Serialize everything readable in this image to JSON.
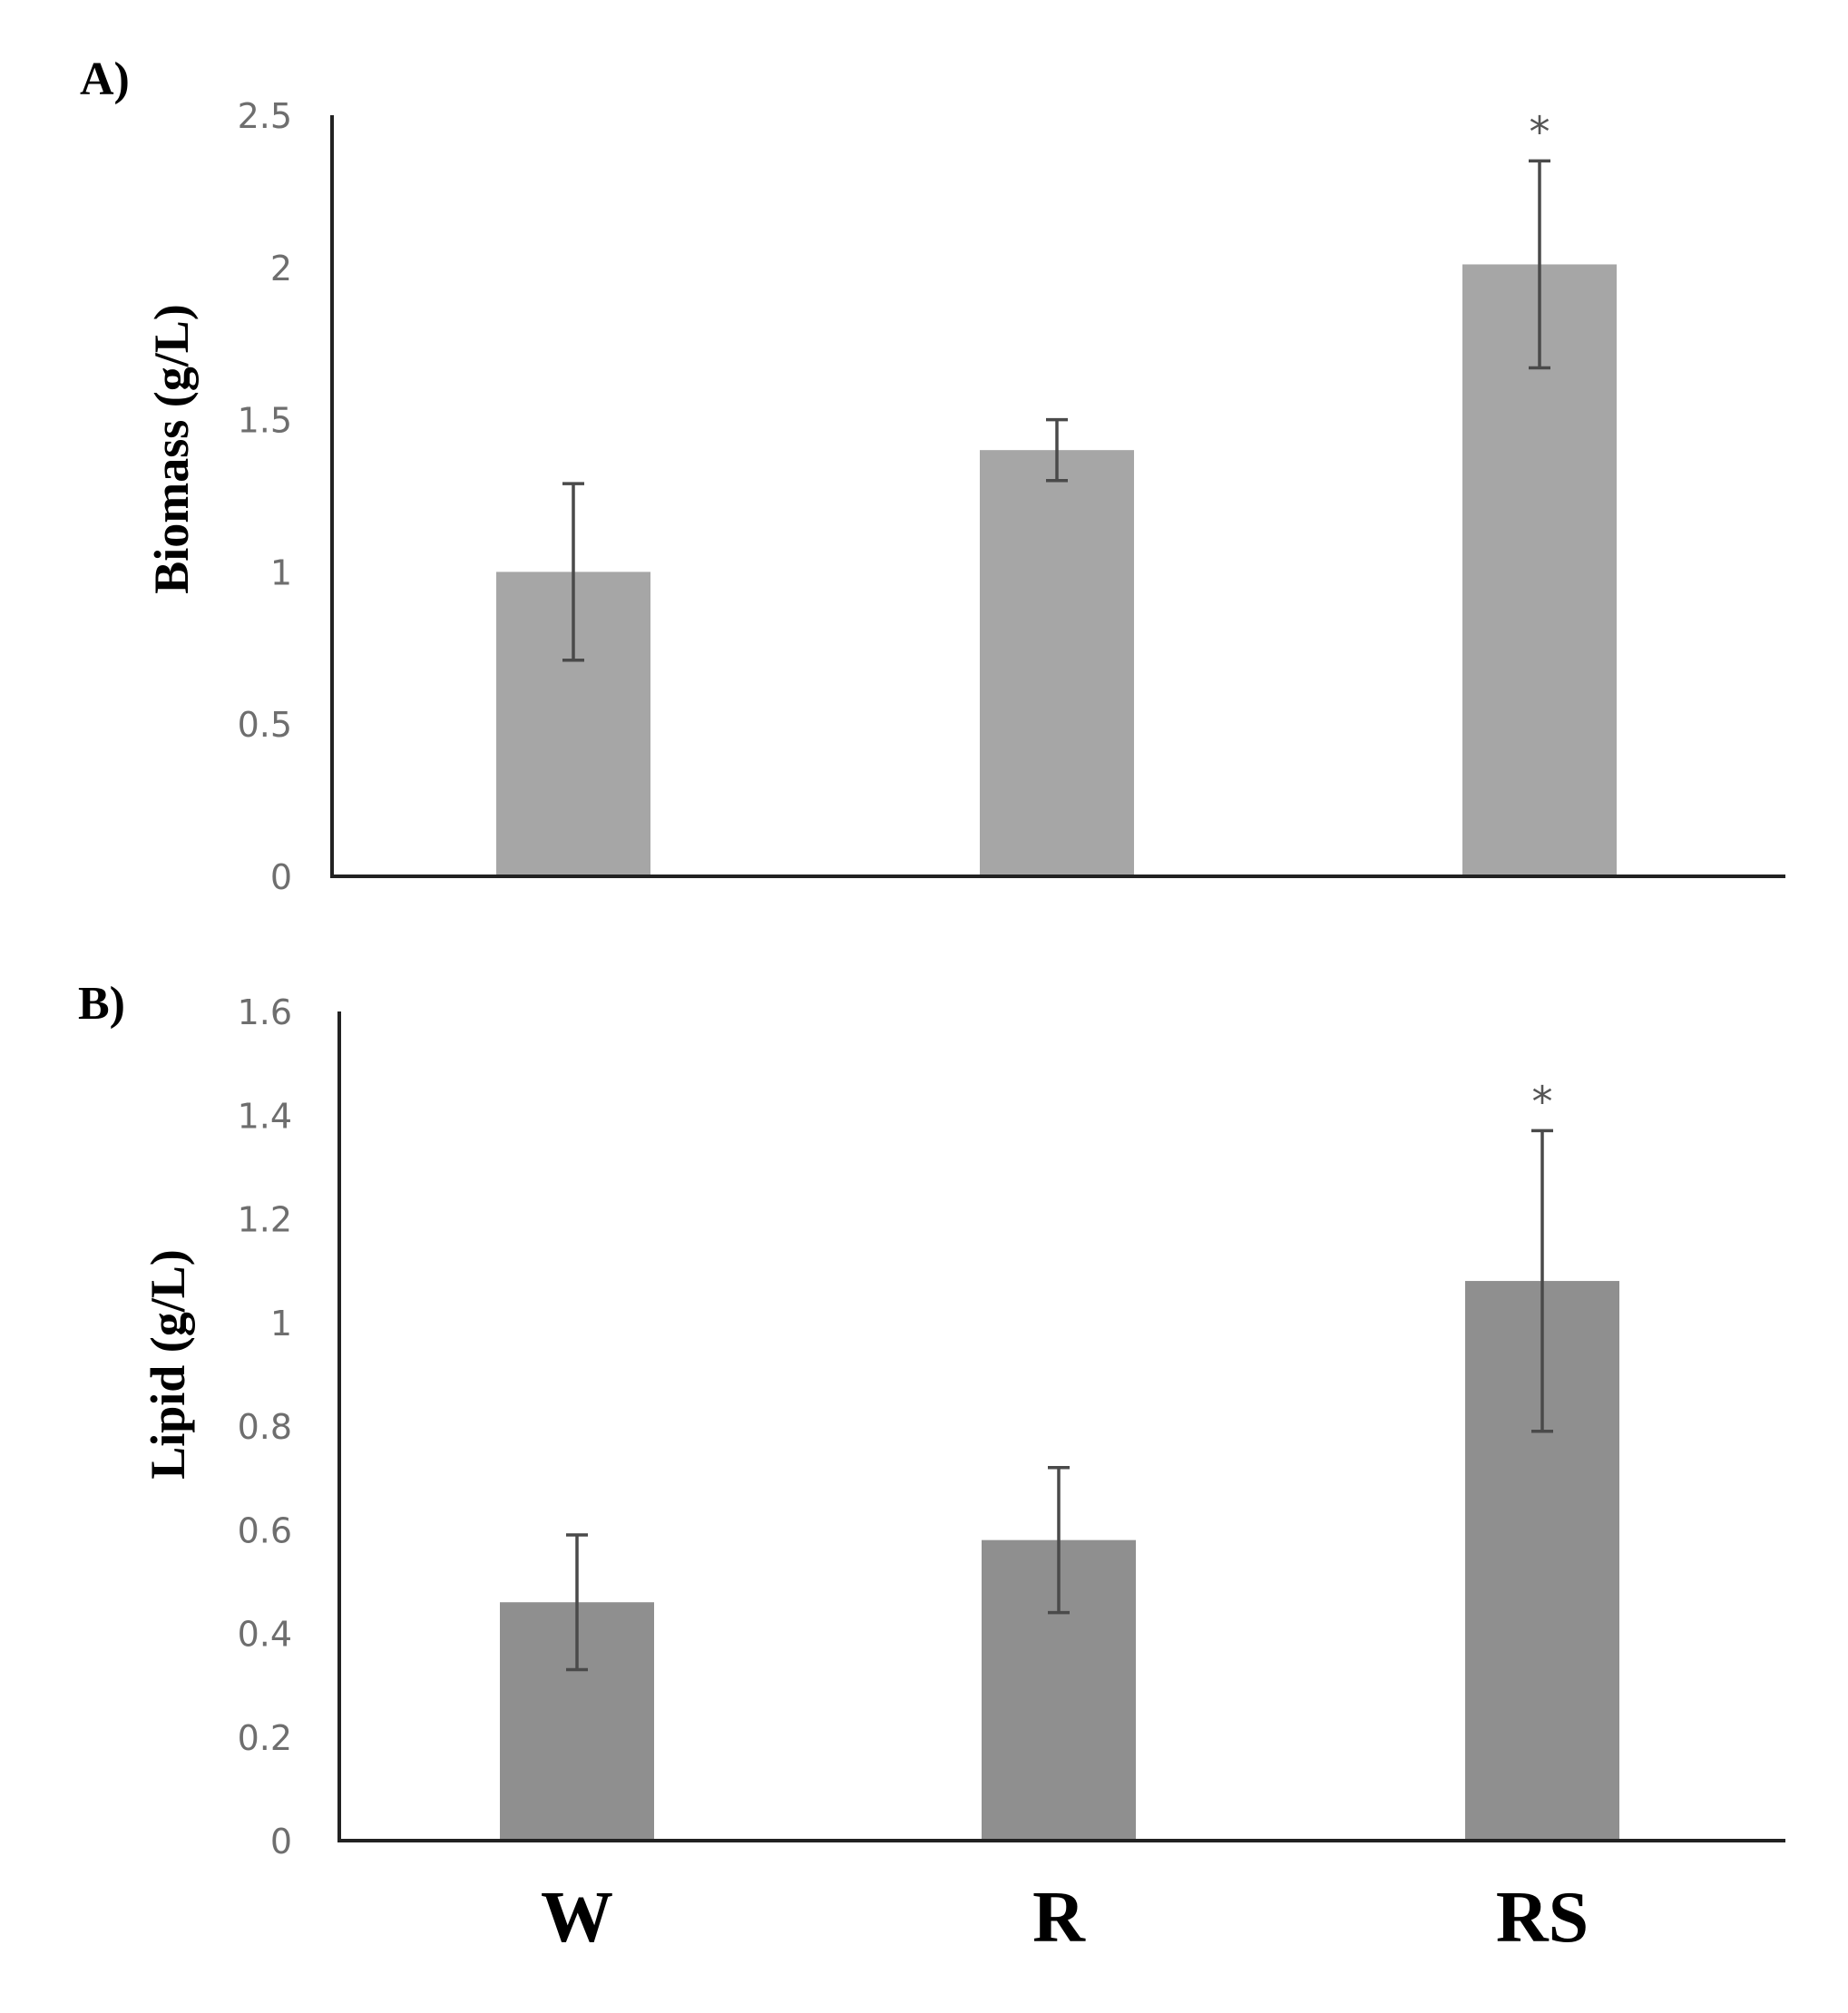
{
  "chart_data": [
    {
      "type": "bar",
      "panel_label": "A)",
      "ylabel": "Biomass (g/L)",
      "categories": [
        "W",
        "R",
        "RS"
      ],
      "values": [
        1.0,
        1.4,
        2.01
      ],
      "errors": [
        0.29,
        0.1,
        0.34
      ],
      "significance": [
        "",
        "",
        "*"
      ],
      "ylim": [
        0,
        2.5
      ],
      "yticks": [
        0,
        0.5,
        1,
        1.5,
        2,
        2.5
      ],
      "ytick_labels": [
        "0",
        "0.5",
        "1",
        "1.5",
        "2",
        "2.5"
      ],
      "bar_color": "#a6a6a6",
      "show_xtick_labels": false
    },
    {
      "type": "bar",
      "panel_label": "B)",
      "ylabel": "Lipid (g/L)",
      "categories": [
        "W",
        "R",
        "RS"
      ],
      "values": [
        0.46,
        0.58,
        1.08
      ],
      "errors": [
        0.13,
        0.14,
        0.29
      ],
      "significance": [
        "",
        "",
        "*"
      ],
      "ylim": [
        0,
        1.6
      ],
      "yticks": [
        0,
        0.2,
        0.4,
        0.6,
        0.8,
        1,
        1.2,
        1.4,
        1.6
      ],
      "ytick_labels": [
        "0",
        "0.2",
        "0.4",
        "0.6",
        "0.8",
        "1",
        "1.2",
        "1.4",
        "1.6"
      ],
      "bar_color": "#8f8f8f",
      "show_xtick_labels": true
    }
  ]
}
